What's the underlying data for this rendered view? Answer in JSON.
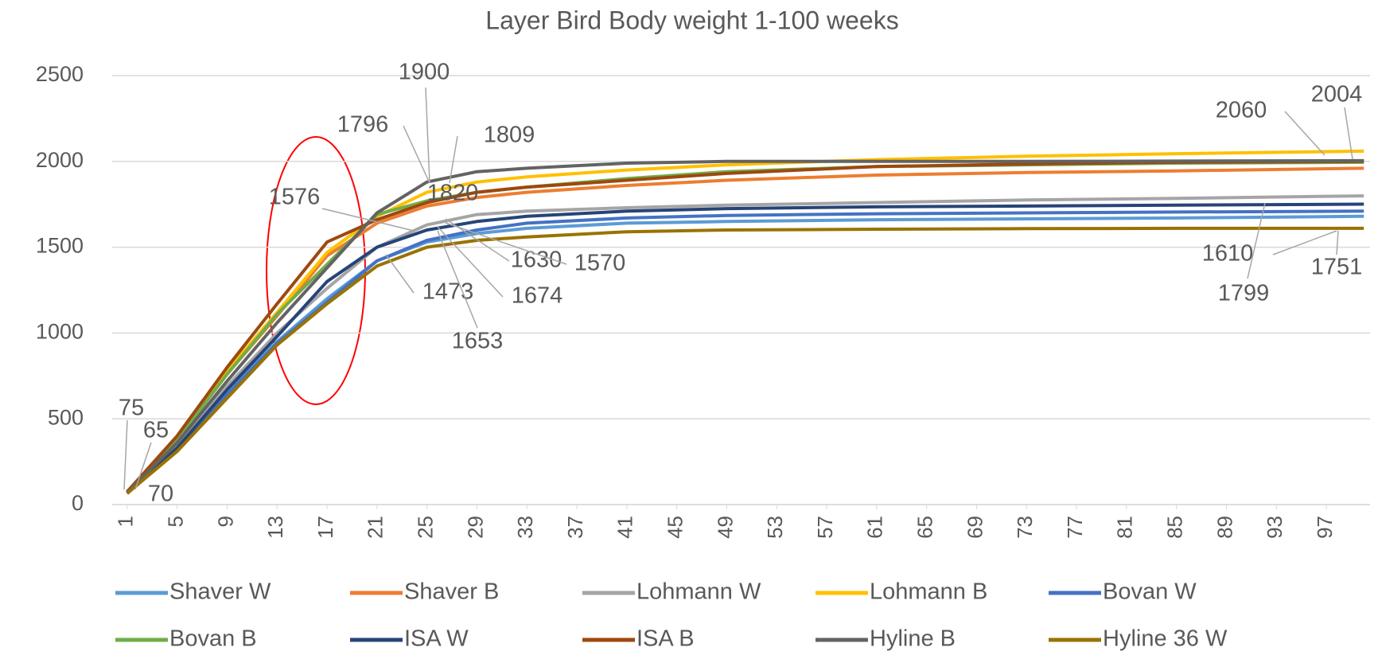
{
  "chart_data": {
    "type": "line",
    "title": "Layer Bird Body weight 1-100 weeks",
    "x": [
      1,
      5,
      9,
      13,
      17,
      21,
      25,
      29,
      33,
      41,
      49,
      61,
      73,
      85,
      100
    ],
    "xlim": [
      0.5,
      100.5
    ],
    "xticks": [
      1,
      5,
      9,
      13,
      17,
      21,
      25,
      29,
      33,
      37,
      41,
      45,
      49,
      53,
      57,
      61,
      65,
      69,
      73,
      77,
      81,
      85,
      89,
      93,
      97
    ],
    "ylim": [
      0,
      2500
    ],
    "yticks": [
      0,
      500,
      1000,
      1500,
      2000,
      2500
    ],
    "grid": true,
    "legend": "bottom",
    "series": [
      {
        "name": "Shaver W",
        "color": "#5b9bd5",
        "values": [
          70,
          330,
          650,
          950,
          1200,
          1420,
          1530,
          1580,
          1610,
          1640,
          1650,
          1660,
          1665,
          1670,
          1680
        ]
      },
      {
        "name": "Shaver B",
        "color": "#ed7d31",
        "values": [
          70,
          380,
          760,
          1100,
          1450,
          1640,
          1740,
          1790,
          1820,
          1860,
          1890,
          1920,
          1935,
          1945,
          1960
        ]
      },
      {
        "name": "Lohmann W",
        "color": "#a5a5a5",
        "values": [
          70,
          350,
          690,
          1000,
          1260,
          1500,
          1630,
          1690,
          1710,
          1730,
          1745,
          1760,
          1775,
          1785,
          1799
        ]
      },
      {
        "name": "Lohmann B",
        "color": "#ffc000",
        "values": [
          75,
          390,
          780,
          1120,
          1470,
          1680,
          1820,
          1880,
          1910,
          1950,
          1980,
          2010,
          2030,
          2045,
          2060
        ]
      },
      {
        "name": "Bovan W",
        "color": "#4472c4",
        "values": [
          65,
          320,
          640,
          940,
          1180,
          1420,
          1540,
          1600,
          1640,
          1670,
          1685,
          1695,
          1700,
          1705,
          1710
        ]
      },
      {
        "name": "Bovan B",
        "color": "#70ad47",
        "values": [
          70,
          380,
          760,
          1110,
          1400,
          1690,
          1770,
          1820,
          1850,
          1900,
          1940,
          1970,
          1980,
          1990,
          1995
        ]
      },
      {
        "name": "ISA W",
        "color": "#264478",
        "values": [
          65,
          330,
          670,
          980,
          1300,
          1500,
          1600,
          1650,
          1680,
          1710,
          1725,
          1735,
          1740,
          1745,
          1751
        ]
      },
      {
        "name": "ISA B",
        "color": "#9e480e",
        "values": [
          75,
          400,
          800,
          1170,
          1530,
          1660,
          1760,
          1820,
          1850,
          1890,
          1930,
          1970,
          1985,
          1995,
          2000
        ]
      },
      {
        "name": "Hyline B",
        "color": "#636363",
        "values": [
          70,
          360,
          720,
          1060,
          1380,
          1700,
          1880,
          1940,
          1960,
          1990,
          2000,
          2000,
          2000,
          2002,
          2004
        ]
      },
      {
        "name": "Hyline 36 W",
        "color": "#997300",
        "values": [
          65,
          310,
          620,
          930,
          1170,
          1390,
          1500,
          1540,
          1560,
          1590,
          1600,
          1605,
          1608,
          1610,
          1610
        ]
      }
    ],
    "annotations": [
      75,
      65,
      70,
      1576,
      1796,
      1900,
      1809,
      1820,
      1630,
      1570,
      1473,
      1674,
      1653,
      2060,
      2004,
      1610,
      1751,
      1799
    ]
  }
}
